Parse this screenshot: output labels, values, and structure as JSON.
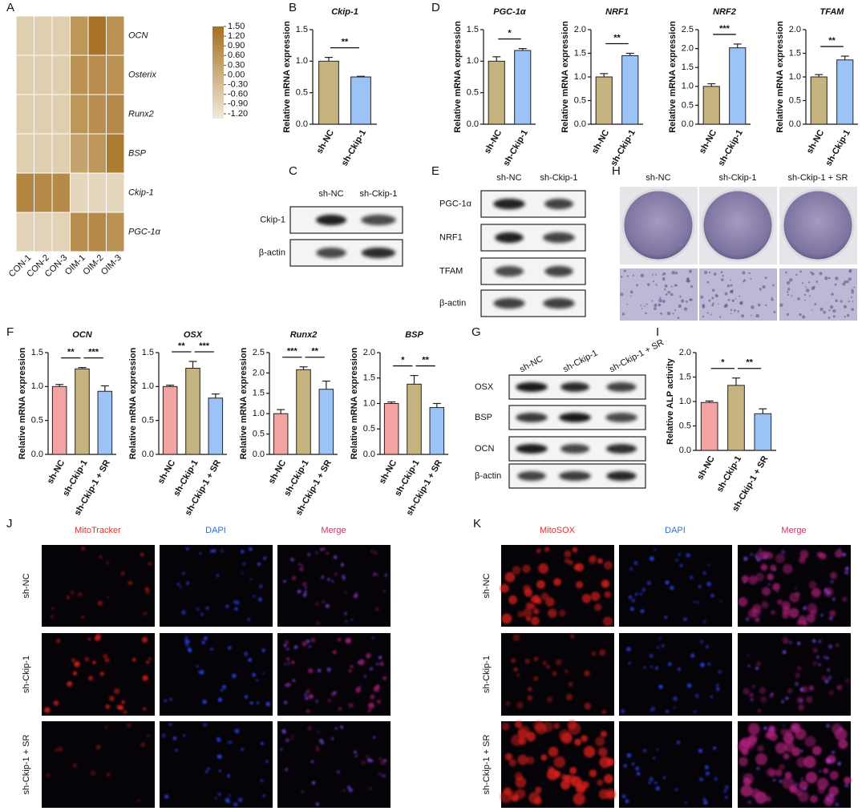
{
  "chart_data": [
    {
      "type": "heatmap",
      "rows": [
        "OCN",
        "Osterix",
        "Runx2",
        "BSP",
        "Ckip-1",
        "PGC-1α"
      ],
      "columns": [
        "CON-1",
        "CON-2",
        "CON-3",
        "OIM-1",
        "OIM-2",
        "OIM-3"
      ],
      "values": [
        [
          -0.7,
          -0.7,
          -0.7,
          0.6,
          1.4,
          0.7
        ],
        [
          -0.7,
          -0.7,
          -0.7,
          0.7,
          0.8,
          0.7
        ],
        [
          -0.7,
          -0.7,
          -0.7,
          0.6,
          0.8,
          0.9
        ],
        [
          -0.7,
          -0.7,
          -0.7,
          0.3,
          0.6,
          1.2
        ],
        [
          1.0,
          0.9,
          0.9,
          -0.9,
          -0.9,
          -0.9
        ],
        [
          -0.8,
          -0.8,
          -0.8,
          0.8,
          0.9,
          0.7
        ]
      ],
      "colors": [
        "#f1eadb",
        "#a56f1f"
      ],
      "zlim": [
        -1.35,
        1.5
      ],
      "zticks": [
        {
          "value": 1.5,
          "label": "1.50"
        },
        {
          "value": 1.2,
          "label": "1.20"
        },
        {
          "value": 0.9,
          "label": "0.90"
        },
        {
          "value": 0.6,
          "label": "0.60"
        },
        {
          "value": 0.3,
          "label": "0.30"
        },
        {
          "value": 0,
          "label": "0.00"
        },
        {
          "value": -0.3,
          "label": "-0.30"
        },
        {
          "value": -0.6,
          "label": "-0.60"
        },
        {
          "value": -0.9,
          "label": "-0.90"
        },
        {
          "value": -1.2,
          "label": "-1.20"
        }
      ]
    },
    {
      "type": "bar",
      "title": "Ckip-1",
      "ylabel": "Relative mRNA expression",
      "categories": [
        "sh-NC",
        "sh-Ckip-1"
      ],
      "values": [
        1.0,
        0.75
      ],
      "errors": [
        0.06,
        0.01
      ],
      "colors": [
        "#c5b47f",
        "#9cc3f5"
      ],
      "ylim": [
        0,
        1.5
      ],
      "yticks": [
        {
          "value": 0,
          "label": "0.0"
        },
        0.5,
        {
          "value": 1,
          "label": "1.0"
        },
        1.5
      ],
      "significance": [
        "**"
      ]
    },
    {
      "type": "bar",
      "title": "PGC-1α",
      "ylabel": "Relative mRNA expression",
      "categories": [
        "sh-NC",
        "sh-Ckip-1"
      ],
      "values": [
        1.0,
        1.17
      ],
      "errors": [
        0.07,
        0.03
      ],
      "colors": [
        "#c5b47f",
        "#9cc3f5"
      ],
      "ylim": [
        0,
        1.5
      ],
      "yticks": [
        {
          "value": 0,
          "label": "0.0"
        },
        0.5,
        {
          "value": 1,
          "label": "1.0"
        },
        1.5
      ],
      "significance": [
        "*"
      ]
    },
    {
      "type": "bar",
      "title": "NRF1",
      "ylabel": "Relative mRNA expression",
      "categories": [
        "sh-NC",
        "sh-Ckip-1"
      ],
      "values": [
        1.0,
        1.45
      ],
      "errors": [
        0.07,
        0.05
      ],
      "colors": [
        "#c5b47f",
        "#9cc3f5"
      ],
      "ylim": [
        0,
        2
      ],
      "yticks": [
        {
          "value": 0,
          "label": "0.0"
        },
        0.5,
        {
          "value": 1,
          "label": "1.0"
        },
        1.5,
        {
          "value": 2,
          "label": "2.0"
        }
      ],
      "significance": [
        "**"
      ]
    },
    {
      "type": "bar",
      "title": "NRF2",
      "ylabel": "Relative mRNA expression",
      "categories": [
        "sh-NC",
        "sh-Ckip-1"
      ],
      "values": [
        1.0,
        2.02
      ],
      "errors": [
        0.07,
        0.1
      ],
      "colors": [
        "#c5b47f",
        "#9cc3f5"
      ],
      "ylim": [
        0,
        2.5
      ],
      "yticks": [
        {
          "value": 0,
          "label": "0.0"
        },
        0.5,
        {
          "value": 1,
          "label": "1.0"
        },
        1.5,
        {
          "value": 2,
          "label": "2.0"
        },
        2.5
      ],
      "significance": [
        "***"
      ]
    },
    {
      "type": "bar",
      "title": "TFAM",
      "ylabel": "Relative mRNA expression",
      "categories": [
        "sh-NC",
        "sh-Ckip-1"
      ],
      "values": [
        1.0,
        1.36
      ],
      "errors": [
        0.05,
        0.08
      ],
      "colors": [
        "#c5b47f",
        "#9cc3f5"
      ],
      "ylim": [
        0,
        2
      ],
      "yticks": [
        {
          "value": 0,
          "label": "0.0"
        },
        0.5,
        {
          "value": 1,
          "label": "1.0"
        },
        1.5,
        {
          "value": 2,
          "label": "2.0"
        }
      ],
      "significance": [
        "**"
      ]
    },
    {
      "type": "bar",
      "title": "OCN",
      "ylabel": "Relative mRNA expression",
      "categories": [
        "sh-NC",
        "sh-Ckip-1",
        "sh-Ckip-1 + SR"
      ],
      "values": [
        1.0,
        1.26,
        0.93
      ],
      "errors": [
        0.03,
        0.02,
        0.08
      ],
      "colors": [
        "#f4a3a3",
        "#c5b47f",
        "#9cc3f5"
      ],
      "ylim": [
        0,
        1.5
      ],
      "yticks": [
        {
          "value": 0,
          "label": "0.0"
        },
        0.5,
        {
          "value": 1,
          "label": "1.0"
        },
        1.5
      ],
      "significance": [
        "**",
        "***"
      ]
    },
    {
      "type": "bar",
      "title": "OSX",
      "ylabel": "Relative mRNA expression",
      "categories": [
        "sh-NC",
        "sh-Ckip-1",
        "sh-Ckip-1 + SR"
      ],
      "values": [
        1.0,
        1.27,
        0.83
      ],
      "errors": [
        0.02,
        0.1,
        0.06
      ],
      "colors": [
        "#f4a3a3",
        "#c5b47f",
        "#9cc3f5"
      ],
      "ylim": [
        0,
        1.5
      ],
      "yticks": [
        {
          "value": 0,
          "label": "0.0"
        },
        0.5,
        {
          "value": 1,
          "label": "1.0"
        },
        1.5
      ],
      "significance": [
        "**",
        "***"
      ]
    },
    {
      "type": "bar",
      "title": "Runx2",
      "ylabel": "Relative mRNA expression",
      "categories": [
        "sh-NC",
        "sh-Ckip-1",
        "sh-Ckip-1 + SR"
      ],
      "values": [
        1.0,
        2.08,
        1.6
      ],
      "errors": [
        0.1,
        0.07,
        0.2
      ],
      "colors": [
        "#f4a3a3",
        "#c5b47f",
        "#9cc3f5"
      ],
      "ylim": [
        0,
        2.5
      ],
      "yticks": [
        {
          "value": 0,
          "label": "0.0"
        },
        0.5,
        {
          "value": 1,
          "label": "1.0"
        },
        1.5,
        {
          "value": 2,
          "label": "2.0"
        },
        2.5
      ],
      "significance": [
        "***",
        "**"
      ]
    },
    {
      "type": "bar",
      "title": "BSP",
      "ylabel": "Relative mRNA expression",
      "categories": [
        "sh-NC",
        "sh-Ckip-1",
        "sh-Ckip-1 + SR"
      ],
      "values": [
        1.0,
        1.38,
        0.92
      ],
      "errors": [
        0.03,
        0.17,
        0.08
      ],
      "colors": [
        "#f4a3a3",
        "#c5b47f",
        "#9cc3f5"
      ],
      "ylim": [
        0,
        2
      ],
      "yticks": [
        {
          "value": 0,
          "label": "0.0"
        },
        0.5,
        {
          "value": 1,
          "label": "1.0"
        },
        1.5,
        {
          "value": 2,
          "label": "2.0"
        }
      ],
      "significance": [
        "*",
        "**"
      ]
    },
    {
      "type": "bar",
      "ylabel": "Relative ALP activity",
      "categories": [
        "sh-NC",
        "sh-Ckip-1",
        "sh-Ckip-1 + SR"
      ],
      "values": [
        0.98,
        1.33,
        0.75
      ],
      "errors": [
        0.03,
        0.15,
        0.1
      ],
      "colors": [
        "#f4a3a3",
        "#c5b47f",
        "#9cc3f5"
      ],
      "ylim": [
        0,
        2
      ],
      "yticks": [
        {
          "value": 0,
          "label": "0.0"
        },
        0.5,
        {
          "value": 1,
          "label": "1.0"
        },
        1.5,
        {
          "value": 2,
          "label": "2.0"
        }
      ],
      "significance": [
        "*",
        "**"
      ]
    }
  ],
  "panel_labels": [
    "A",
    "B",
    "C",
    "D",
    "E",
    "F",
    "G",
    "H",
    "I",
    "J",
    "K"
  ],
  "blot_C": {
    "columns": [
      "sh-NC",
      "sh-Ckip-1"
    ],
    "rows": [
      "Ckip-1",
      "β-actin"
    ]
  },
  "blot_E": {
    "columns": [
      "sh-NC",
      "sh-Ckip-1"
    ],
    "rows": [
      "PGC-1α",
      "NRF1",
      "TFAM",
      "β-actin"
    ]
  },
  "blot_G": {
    "columns": [
      "sh-NC",
      "sh-Ckip-1",
      "sh-Ckip-1 + SR"
    ],
    "rows": [
      "OSX",
      "BSP",
      "OCN",
      "β-actin"
    ]
  },
  "staining_H": {
    "columns": [
      "sh-NC",
      "sh-Ckip-1",
      "sh-Ckip-1 + SR"
    ]
  },
  "imaging_J": {
    "columns": [
      "MitoTracker",
      "DAPI",
      "Merge"
    ],
    "rows": [
      "sh-NC",
      "sh-Ckip-1",
      "sh-Ckip-1 + SR"
    ]
  },
  "imaging_K": {
    "columns": [
      "MitoSOX",
      "DAPI",
      "Merge"
    ],
    "rows": [
      "sh-NC",
      "sh-Ckip-1",
      "sh-Ckip-1 + SR"
    ]
  }
}
